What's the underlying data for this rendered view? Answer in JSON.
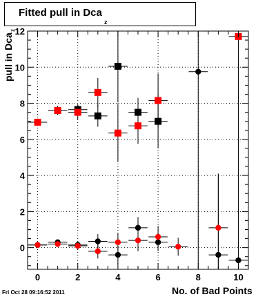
{
  "chart_data": {
    "type": "scatter",
    "title": "Fitted pull in Dca",
    "title_subscript": "z",
    "xlabel": "No. of Bad Points",
    "ylabel": "pull in Dca",
    "ylabel_subscript": "z",
    "xlim": [
      -0.5,
      10.5
    ],
    "ylim": [
      -1.2,
      12.0
    ],
    "xticks": [
      0,
      2,
      4,
      6,
      8,
      10
    ],
    "yticks": [
      0,
      2,
      4,
      6,
      8,
      10,
      12
    ],
    "grid": true,
    "timestamp": "Fri Oct 28 09:16:52 2011",
    "series": [
      {
        "marker": "square",
        "color": "#000000",
        "points": [
          {
            "x": 1,
            "y": 7.6,
            "yerr": 0.25
          },
          {
            "x": 2,
            "y": 7.65,
            "yerr": 0.3
          },
          {
            "x": 3,
            "y": 7.3,
            "yerr": 0.6
          },
          {
            "x": 4,
            "y": 10.05,
            "yerr": 2.0
          },
          {
            "x": 5,
            "y": 7.5,
            "yerr": 0.8
          },
          {
            "x": 6,
            "y": 7.0,
            "yerr": 1.5
          }
        ]
      },
      {
        "marker": "square",
        "color": "#ff0000",
        "points": [
          {
            "x": 0,
            "y": 6.95,
            "yerr": 0.2
          },
          {
            "x": 1,
            "y": 7.6,
            "yerr": 0.25
          },
          {
            "x": 2,
            "y": 7.5,
            "yerr": 0.4
          },
          {
            "x": 3,
            "y": 8.6,
            "yerr": 0.8
          },
          {
            "x": 4,
            "y": 6.35,
            "yerr": 1.6
          },
          {
            "x": 5,
            "y": 6.75,
            "yerr": 1.0
          },
          {
            "x": 6,
            "y": 8.15,
            "yerr": 1.5
          },
          {
            "x": 10,
            "y": 11.7,
            "yerr": 6.0
          }
        ]
      },
      {
        "marker": "circle",
        "color": "#000000",
        "points": [
          {
            "x": 0,
            "y": 0.15,
            "yerr": 0.1
          },
          {
            "x": 1,
            "y": 0.3,
            "yerr": 0.15
          },
          {
            "x": 2,
            "y": 0.15,
            "yerr": 0.2
          },
          {
            "x": 3,
            "y": 0.35,
            "yerr": 0.4
          },
          {
            "x": 4,
            "y": -0.4,
            "yerr": 0.5
          },
          {
            "x": 5,
            "y": 1.1,
            "yerr": 0.6
          },
          {
            "x": 6,
            "y": 0.3,
            "yerr": 0.5
          },
          {
            "x": 8,
            "y": 9.75,
            "yerr": 12.0
          },
          {
            "x": 9,
            "y": -0.4,
            "yerr": 4.5
          },
          {
            "x": 10,
            "y": -0.7,
            "yerr": 6.5
          }
        ]
      },
      {
        "marker": "circle",
        "color": "#ff0000",
        "points": [
          {
            "x": 0,
            "y": 0.15,
            "yerr": 0.1
          },
          {
            "x": 1,
            "y": 0.2,
            "yerr": 0.15
          },
          {
            "x": 2,
            "y": 0.1,
            "yerr": 0.2
          },
          {
            "x": 3,
            "y": -0.2,
            "yerr": 0.4
          },
          {
            "x": 4,
            "y": 0.3,
            "yerr": 0.5
          },
          {
            "x": 5,
            "y": 0.4,
            "yerr": 0.6
          },
          {
            "x": 6,
            "y": 0.6,
            "yerr": 0.6
          },
          {
            "x": 7,
            "y": 0.05,
            "yerr": 0.5
          },
          {
            "x": 9,
            "y": 1.1,
            "yerr": 3.0
          }
        ]
      }
    ]
  }
}
